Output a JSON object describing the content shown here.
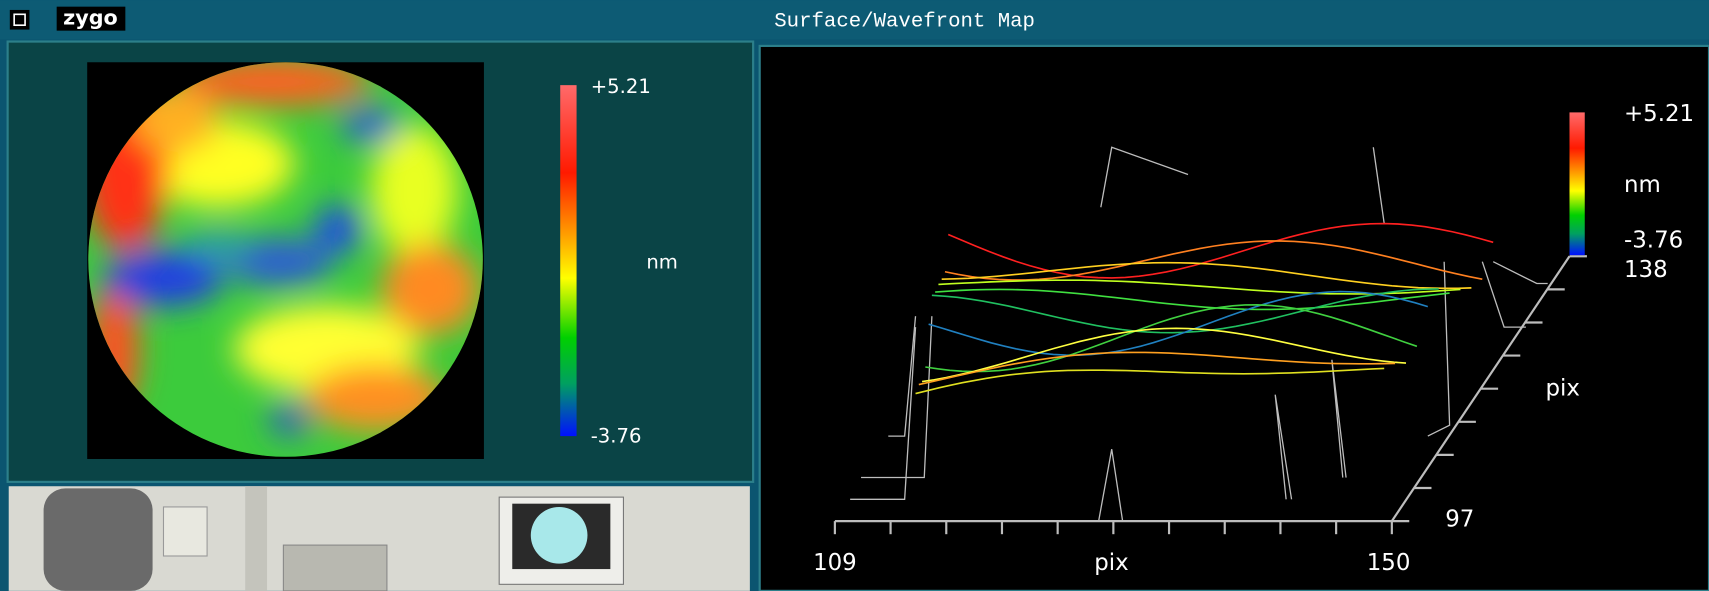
{
  "title_bar": {
    "logo": "zygo",
    "title": "Surface/Wavefront Map"
  },
  "map_panel": {
    "scale_max": "+5.21",
    "unit": "nm",
    "scale_min": "-3.76"
  },
  "plot_panel": {
    "scale_max": "+5.21",
    "unit": "nm",
    "scale_min": "-3.76",
    "y_axis": {
      "max": "138",
      "label": "pix",
      "min": "97"
    },
    "x_axis": {
      "min": "109",
      "label": "pix",
      "max": "150"
    }
  }
}
